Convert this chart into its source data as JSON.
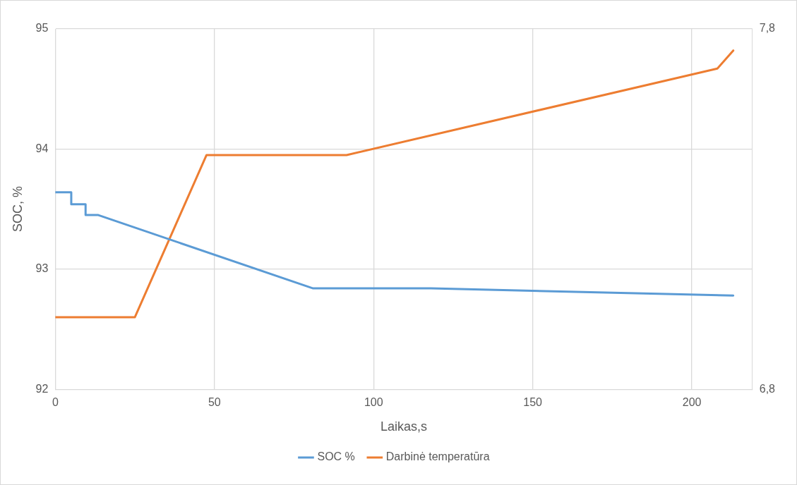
{
  "chart_data": {
    "type": "line",
    "xlabel": "Laikas,s",
    "ylabel": "SOC, %",
    "xlim": [
      0,
      219
    ],
    "xticks": [
      0,
      50,
      100,
      150,
      200
    ],
    "ylim": [
      92,
      95
    ],
    "yticks": [
      92,
      93,
      94,
      95
    ],
    "y2lim": [
      6.8,
      7.8
    ],
    "y2ticks": [
      {
        "value": 6.8,
        "label": "6,8"
      },
      {
        "value": 7.8,
        "label": "7,8"
      }
    ],
    "grid": true,
    "legend": "bottom",
    "marker": "none",
    "line_style": "solid",
    "series": [
      {
        "name": "SOC %",
        "color": "#5b9bd5",
        "axis": "y",
        "x": [
          0,
          5,
          5,
          9.5,
          9.5,
          13.5,
          81,
          118,
          213
        ],
        "values": [
          93.64,
          93.64,
          93.54,
          93.54,
          93.45,
          93.45,
          92.84,
          92.84,
          92.78
        ]
      },
      {
        "name": "Darbinė temperatūra",
        "color": "#ed7d31",
        "axis": "y2",
        "x": [
          0,
          25,
          47.5,
          91.5,
          208,
          213
        ],
        "values": [
          7.0,
          7.0,
          7.45,
          7.45,
          7.69,
          7.74
        ]
      }
    ]
  }
}
